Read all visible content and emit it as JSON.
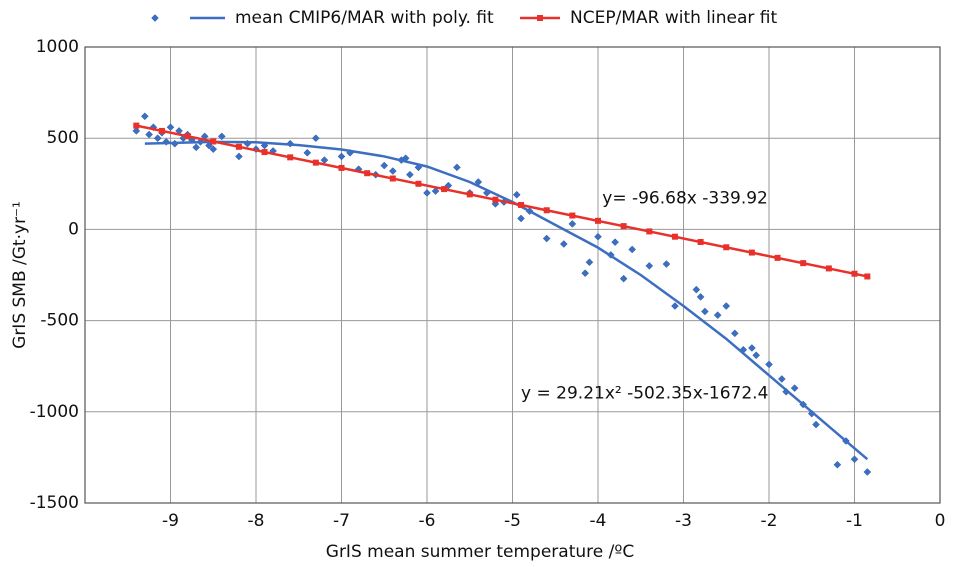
{
  "chart_data": {
    "type": "scatter",
    "xlabel": "GrIS mean summer temperature /ºC",
    "ylabel": "GrIS SMB /Gt·yr⁻¹",
    "xlim": [
      -10,
      0
    ],
    "xticks": [
      -9,
      -8,
      -7,
      -6,
      -5,
      -4,
      -3,
      -2,
      -1,
      0
    ],
    "ylim": [
      -1500,
      1000
    ],
    "yticks": [
      -1500,
      -1000,
      -500,
      0,
      500,
      1000
    ],
    "grid": true,
    "legend": "top",
    "annotations": [
      {
        "text": "y= -96.68x -339.92",
        "x": -3.95,
        "y": 170,
        "color": "#e8312a"
      },
      {
        "text": "y = 29.21x² -502.35x-1672.4",
        "x": -4.9,
        "y": -900,
        "color": "#3c6fc1"
      }
    ],
    "series": [
      {
        "name": "mean CMIP6/MAR with poly. fit",
        "color": "#3c6fc1",
        "marker": "diamond",
        "x": [
          -9.4,
          -9.3,
          -9.25,
          -9.2,
          -9.15,
          -9.1,
          -9.05,
          -9.0,
          -8.95,
          -8.9,
          -8.85,
          -8.8,
          -8.75,
          -8.7,
          -8.65,
          -8.6,
          -8.55,
          -8.5,
          -8.4,
          -8.2,
          -8.1,
          -8.0,
          -7.9,
          -7.8,
          -7.6,
          -7.4,
          -7.3,
          -7.2,
          -7.0,
          -6.9,
          -6.8,
          -6.6,
          -6.5,
          -6.4,
          -6.3,
          -6.25,
          -6.2,
          -6.1,
          -6.0,
          -5.9,
          -5.75,
          -5.65,
          -5.5,
          -5.4,
          -5.3,
          -5.2,
          -5.1,
          -4.95,
          -4.9,
          -4.8,
          -4.6,
          -4.4,
          -4.3,
          -4.15,
          -4.1,
          -4.0,
          -3.85,
          -3.8,
          -3.7,
          -3.6,
          -3.4,
          -3.2,
          -3.1,
          -2.85,
          -2.8,
          -2.75,
          -2.6,
          -2.5,
          -2.4,
          -2.3,
          -2.2,
          -2.15,
          -2.0,
          -1.85,
          -1.8,
          -1.7,
          -1.6,
          -1.5,
          -1.45,
          -1.2,
          -1.1,
          -1.0,
          -0.85
        ],
        "values": [
          540,
          620,
          520,
          560,
          500,
          530,
          480,
          560,
          470,
          540,
          500,
          520,
          490,
          450,
          480,
          510,
          460,
          440,
          510,
          400,
          470,
          440,
          460,
          430,
          470,
          420,
          500,
          380,
          400,
          420,
          330,
          300,
          350,
          320,
          380,
          390,
          300,
          340,
          200,
          210,
          240,
          340,
          200,
          260,
          200,
          140,
          150,
          190,
          60,
          100,
          -50,
          -80,
          30,
          -240,
          -180,
          -40,
          -140,
          -70,
          -270,
          -110,
          -200,
          -190,
          -420,
          -330,
          -370,
          -450,
          -470,
          -420,
          -570,
          -660,
          -650,
          -690,
          -740,
          -820,
          -890,
          -870,
          -960,
          -1010,
          -1070,
          -1290,
          -1160,
          -1260,
          -1330
        ],
        "fit_x": [
          -9.3,
          -8.5,
          -8,
          -7.5,
          -7,
          -6.5,
          -6,
          -5.5,
          -5,
          -4.5,
          -4,
          -3.5,
          -3,
          -2.5,
          -2,
          -1.5,
          -1,
          -0.85
        ],
        "fit_values": [
          470,
          480,
          478,
          462,
          438,
          400,
          345,
          260,
          150,
          25,
          -100,
          -250,
          -420,
          -600,
          -800,
          -1000,
          -1200,
          -1260
        ]
      },
      {
        "name": "NCEP/MAR with linear fit",
        "color": "#e8312a",
        "marker": "square",
        "x": [
          -9.4,
          -9.1,
          -8.8,
          -8.5,
          -8.2,
          -7.9,
          -7.6,
          -7.3,
          -7.0,
          -6.7,
          -6.4,
          -6.1,
          -5.8,
          -5.5,
          -5.2,
          -4.9,
          -4.6,
          -4.3,
          -4.0,
          -3.7,
          -3.4,
          -3.1,
          -2.8,
          -2.5,
          -2.2,
          -1.9,
          -1.6,
          -1.3,
          -1.0,
          -0.85
        ],
        "values": [
          569,
          540,
          511,
          482,
          453,
          424,
          395,
          366,
          337,
          308,
          279,
          250,
          221,
          192,
          163,
          134,
          105,
          76,
          47,
          18,
          -11,
          -40,
          -69,
          -98,
          -127,
          -156,
          -185,
          -214,
          -243,
          -258
        ],
        "fit_x": [
          -9.4,
          -0.85
        ],
        "fit_values": [
          569,
          -258
        ]
      }
    ]
  }
}
